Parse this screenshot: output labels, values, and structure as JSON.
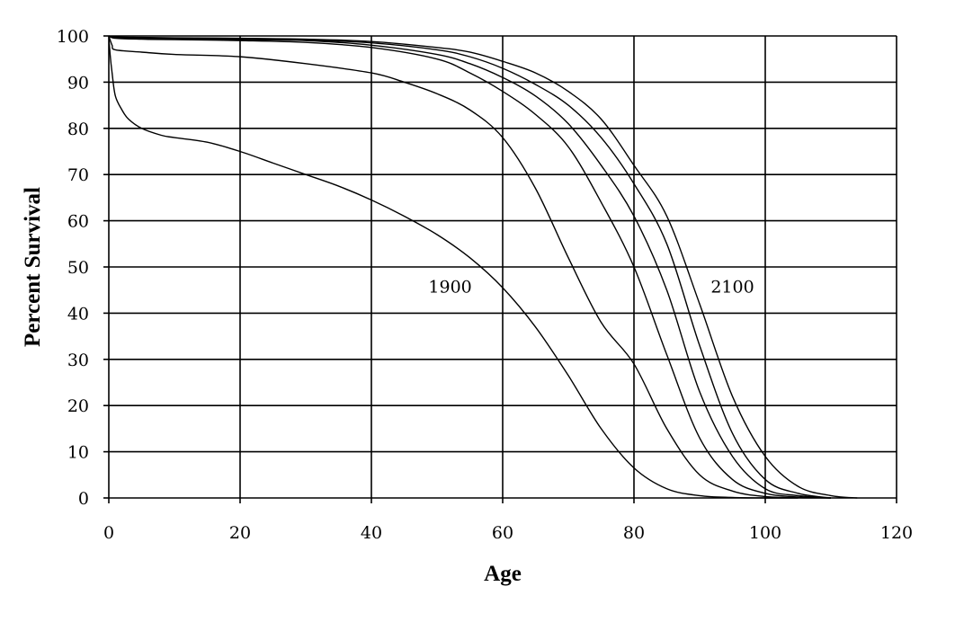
{
  "chart_data": {
    "type": "line",
    "title": "",
    "xlabel": "Age",
    "ylabel": "Percent Survival",
    "xlim": [
      0,
      120
    ],
    "ylim": [
      0,
      100
    ],
    "xticks": [
      0,
      20,
      40,
      60,
      80,
      100,
      120
    ],
    "yticks": [
      0,
      10,
      20,
      30,
      40,
      50,
      60,
      70,
      80,
      90,
      100
    ],
    "grid": true,
    "line_color": "#000000",
    "series": [
      {
        "x": [
          0,
          0.2,
          0.5,
          1,
          2,
          3,
          5,
          8,
          10,
          15,
          20,
          25,
          30,
          35,
          40,
          45,
          50,
          55,
          60,
          65,
          70,
          75,
          80,
          85,
          90,
          95,
          100,
          105
        ],
        "values": [
          100,
          96,
          92,
          87,
          84,
          82,
          80,
          78.5,
          78,
          77,
          75,
          72.5,
          70,
          67.5,
          64.5,
          61,
          57,
          52,
          45.5,
          37,
          26.5,
          15,
          6.5,
          2,
          0.5,
          0.1,
          0,
          0
        ]
      },
      {
        "x": [
          0,
          0.5,
          1,
          5,
          10,
          20,
          30,
          40,
          45,
          50,
          55,
          60,
          65,
          70,
          75,
          80,
          85,
          90,
          95,
          100,
          105,
          110
        ],
        "values": [
          100,
          98,
          97,
          96.5,
          96,
          95.5,
          94,
          92,
          90,
          87.5,
          84,
          78,
          67,
          52,
          38,
          29,
          15,
          5,
          1.5,
          0.3,
          0.05,
          0
        ]
      },
      {
        "x": [
          0,
          1,
          5,
          10,
          20,
          30,
          40,
          50,
          55,
          60,
          65,
          70,
          75,
          80,
          85,
          90,
          95,
          100,
          105,
          110
        ],
        "values": [
          100,
          99.5,
          99.3,
          99.2,
          99,
          98.6,
          97.5,
          95,
          92,
          88,
          83,
          76,
          64,
          50,
          31,
          13,
          4,
          1,
          0.2,
          0
        ]
      },
      {
        "x": [
          0,
          1,
          5,
          10,
          20,
          30,
          40,
          50,
          55,
          60,
          65,
          70,
          75,
          80,
          85,
          90,
          95,
          100,
          105,
          110
        ],
        "values": [
          100,
          99.6,
          99.5,
          99.4,
          99.2,
          99,
          98,
          96,
          94,
          91,
          87,
          81,
          72,
          61,
          45,
          23,
          9,
          2,
          0.5,
          0
        ]
      },
      {
        "x": [
          0,
          1,
          5,
          10,
          20,
          30,
          40,
          50,
          55,
          60,
          65,
          70,
          75,
          80,
          85,
          90,
          95,
          100,
          105,
          110
        ],
        "values": [
          100,
          99.7,
          99.6,
          99.5,
          99.3,
          99.1,
          98.5,
          97,
          95.5,
          93,
          89.5,
          85,
          78,
          68,
          55,
          33,
          14,
          4,
          1,
          0
        ]
      },
      {
        "x": [
          0,
          1,
          5,
          10,
          20,
          30,
          40,
          50,
          55,
          60,
          65,
          70,
          75,
          80,
          85,
          90,
          95,
          100,
          105,
          110,
          114
        ],
        "values": [
          100,
          99.8,
          99.7,
          99.6,
          99.5,
          99.3,
          98.8,
          97.5,
          96.5,
          94.5,
          92,
          88,
          82,
          72,
          61,
          42,
          22,
          9,
          2.5,
          0.5,
          0
        ]
      }
    ],
    "annotations": [
      {
        "text": "1900",
        "x": 52,
        "y": 44.5
      },
      {
        "text": "2100",
        "x": 95,
        "y": 44.5
      }
    ]
  }
}
